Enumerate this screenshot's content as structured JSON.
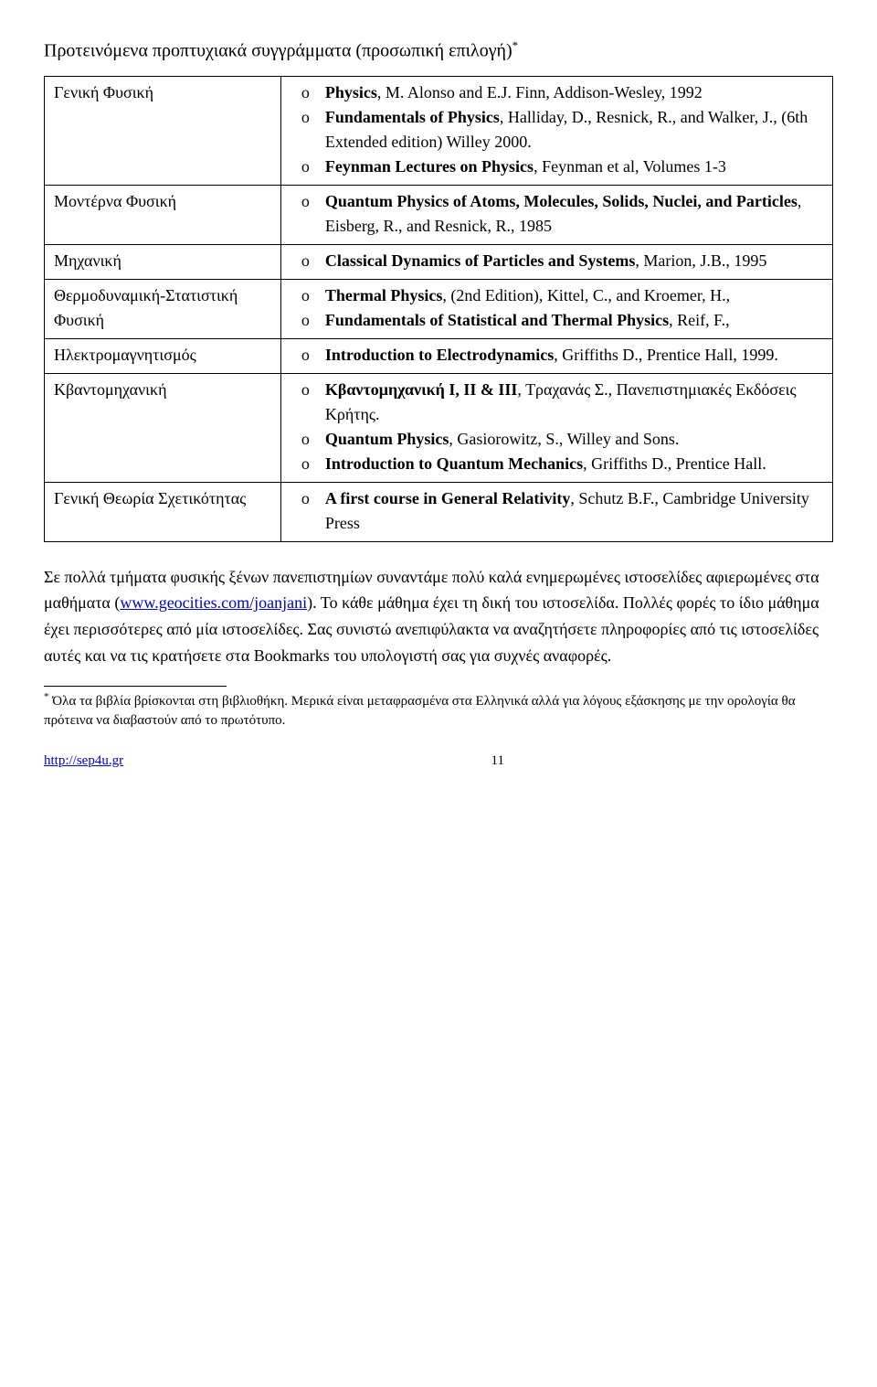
{
  "title": "Προτεινόμενα προπτυχιακά συγγράμματα (προσωπική επιλογή)",
  "title_marker": "*",
  "rows": [
    {
      "topic": "Γενική Φυσική",
      "books": [
        {
          "b": "Physics",
          "t": ", M. Alonso and E.J. Finn, Addison-Wesley, 1992"
        },
        {
          "b": "Fundamentals of Physics",
          "t": ", Halliday, D., Resnick, R., and Walker, J., (6th Extended edition) Willey 2000."
        },
        {
          "b": "Feynman Lectures on Physics",
          "t": ", Feynman et al, Volumes 1-3"
        }
      ]
    },
    {
      "topic": "Μοντέρνα Φυσική",
      "books": [
        {
          "b": "Quantum Physics of Atoms, Molecules, Solids, Nuclei, and Particles",
          "t": ", Eisberg, R., and Resnick, R., 1985"
        }
      ]
    },
    {
      "topic": "Μηχανική",
      "books": [
        {
          "b": "Classical Dynamics of Particles and Systems",
          "t": ", Marion, J.B., 1995"
        }
      ]
    },
    {
      "topic": "Θερμοδυναμική-Στατιστική Φυσική",
      "books": [
        {
          "b": "Thermal Physics",
          "t": ", (2nd Edition), Kittel, C., and Kroemer, H.,"
        },
        {
          "b": "Fundamentals of Statistical and Thermal Physics",
          "t": ", Reif, F.,"
        }
      ]
    },
    {
      "topic": "Ηλεκτρομαγνητισμός",
      "books": [
        {
          "b": "Introduction to Electrodynamics",
          "t": ", Griffiths D., Prentice Hall, 1999."
        }
      ]
    },
    {
      "topic": "Κβαντομηχανική",
      "books": [
        {
          "b": "Κβαντομηχανική Ι, ΙΙ & ΙΙΙ",
          "t": ", Τραχανάς Σ., Πανεπιστημιακές Εκδόσεις Κρήτης."
        },
        {
          "b": "Quantum Physics",
          "t": ", Gasiorowitz, S., Willey and Sons."
        },
        {
          "b": "Introduction to Quantum Mechanics",
          "t": ", Griffiths D., Prentice Hall."
        }
      ]
    },
    {
      "topic": "Γενική Θεωρία Σχετικότητας",
      "books": [
        {
          "b": "A first course in General Relativity",
          "t": ", Schutz B.F., Cambridge University Press"
        }
      ]
    }
  ],
  "paragraph_parts": {
    "p1": "Σε πολλά τμήματα φυσικής ξένων πανεπιστημίων συναντάμε πολύ καλά ενημερωμένες ιστοσελίδες αφιερωμένες στα μαθήματα (",
    "link1": "www.geocities.com/joanjani",
    "p2": "). Το κάθε μάθημα έχει τη δική του ιστοσελίδα. Πολλές φορές το ίδιο μάθημα έχει περισσότερες από μία ιστοσελίδες. Σας συνιστώ ανεπιφύλακτα να αναζητήσετε πληροφορίες από τις ιστοσελίδες αυτές και να τις κρατήσετε στα Bookmarks του υπολογιστή σας για συχνές αναφορές."
  },
  "footnote": {
    "marker": "*",
    "text": " Όλα τα βιβλία βρίσκονται στη βιβλιοθήκη. Μερικά είναι μεταφρασμένα στα Ελληνικά αλλά για λόγους εξάσκησης με την ορολογία θα πρότεινα να διαβαστούν από το πρωτότυπο."
  },
  "footer": {
    "url": "http://sep4u.gr",
    "page": "11"
  },
  "bullet": "o"
}
